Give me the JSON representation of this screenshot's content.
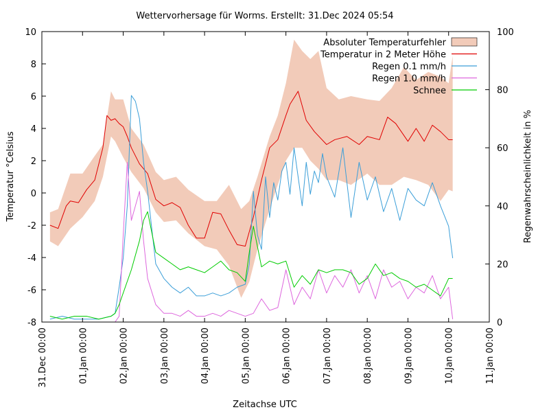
{
  "chart_data": {
    "type": "line",
    "title": "Wettervorhersage für Worms. Erstellt: 31.Dec 2024 05:54",
    "xlabel": "Zeitachse UTC",
    "ylabel": "Temperatur °Celsius",
    "y2label": "Regenwahrscheinlichkeit in %",
    "ylim": [
      -8,
      10
    ],
    "y2lim": [
      0,
      100
    ],
    "xlim": [
      0,
      11
    ],
    "y_ticks": [
      -8,
      -6,
      -4,
      -2,
      0,
      2,
      4,
      6,
      8,
      10
    ],
    "y_tick_labels": [
      "-8",
      "-6",
      "-4",
      "-2",
      "0",
      "2",
      "4",
      "6",
      "8",
      "10"
    ],
    "y2_ticks": [
      0,
      20,
      40,
      60,
      80,
      100
    ],
    "y2_tick_labels": [
      "0",
      "20",
      "40",
      "60",
      "80",
      "100"
    ],
    "x_ticks": [
      0,
      1,
      2,
      3,
      4,
      5,
      6,
      7,
      8,
      9,
      10,
      11
    ],
    "x_tick_labels": [
      "31.Dec 00:00",
      "01.Jan 00:00",
      "02.Jan 00:00",
      "03.Jan 00:00",
      "04.Jan 00:00",
      "05.Jan 00:00",
      "06.Jan 00:00",
      "07.Jan 00:00",
      "08.Jan 00:00",
      "09.Jan 00:00",
      "10.Jan 00:00",
      "11.Jan 00:00"
    ],
    "legend_position": "top-right",
    "series": [
      {
        "name": "Absoluter Temperaturfehler",
        "kind": "band",
        "axis": "y",
        "color": "#f2cbb9",
        "x": [
          0.2,
          0.4,
          0.7,
          1.0,
          1.3,
          1.5,
          1.7,
          1.8,
          2.0,
          2.2,
          2.5,
          2.8,
          3.0,
          3.3,
          3.6,
          4.0,
          4.3,
          4.6,
          4.9,
          5.1,
          5.3,
          5.6,
          5.8,
          6.0,
          6.2,
          6.4,
          6.6,
          6.8,
          7.0,
          7.3,
          7.6,
          8.0,
          8.3,
          8.6,
          8.9,
          9.2,
          9.5,
          9.8,
          10.0,
          10.1
        ],
        "lower": [
          -3.0,
          -3.3,
          -2.2,
          -1.5,
          -0.5,
          1.0,
          3.5,
          3.2,
          2.2,
          1.3,
          0.3,
          -1.2,
          -1.8,
          -1.7,
          -2.5,
          -3.3,
          -3.5,
          -4.5,
          -6.5,
          -5.5,
          -3.5,
          -1.0,
          0.5,
          2.0,
          2.8,
          2.8,
          2.0,
          1.5,
          0.8,
          0.8,
          0.5,
          1.2,
          0.5,
          0.5,
          1.0,
          0.8,
          0.5,
          -0.5,
          0.2,
          0.1
        ],
        "upper": [
          -1.2,
          -1.0,
          1.2,
          1.2,
          2.3,
          3.0,
          6.3,
          5.8,
          5.8,
          4.0,
          3.0,
          1.3,
          0.8,
          1.0,
          0.2,
          -0.5,
          -0.5,
          0.5,
          -1.0,
          -0.5,
          1.0,
          3.5,
          4.8,
          6.8,
          9.5,
          8.8,
          8.3,
          8.8,
          6.5,
          5.8,
          6.0,
          5.8,
          5.7,
          6.5,
          7.8,
          7.0,
          7.5,
          7.2,
          6.8,
          8.5
        ]
      },
      {
        "name": "Temperatur in 2 Meter Höhe",
        "kind": "line",
        "axis": "y",
        "color": "#e00000",
        "x": [
          0.2,
          0.4,
          0.6,
          0.7,
          0.9,
          1.1,
          1.3,
          1.5,
          1.6,
          1.7,
          1.8,
          1.9,
          2.0,
          2.1,
          2.2,
          2.4,
          2.6,
          2.8,
          3.0,
          3.2,
          3.4,
          3.6,
          3.8,
          4.0,
          4.2,
          4.4,
          4.6,
          4.8,
          5.0,
          5.2,
          5.4,
          5.6,
          5.8,
          6.0,
          6.1,
          6.3,
          6.5,
          6.7,
          7.0,
          7.2,
          7.5,
          7.8,
          8.0,
          8.3,
          8.5,
          8.7,
          9.0,
          9.2,
          9.4,
          9.6,
          9.8,
          10.0,
          10.1
        ],
        "y": [
          -2.0,
          -2.2,
          -0.8,
          -0.5,
          -0.6,
          0.2,
          0.8,
          2.8,
          4.8,
          4.5,
          4.6,
          4.3,
          4.1,
          3.5,
          2.8,
          1.8,
          1.2,
          -0.4,
          -0.8,
          -0.6,
          -0.9,
          -2.0,
          -2.8,
          -2.8,
          -1.2,
          -1.3,
          -2.3,
          -3.2,
          -3.3,
          -1.5,
          0.8,
          2.8,
          3.3,
          4.8,
          5.5,
          6.3,
          4.5,
          3.8,
          3.0,
          3.3,
          3.5,
          3.0,
          3.5,
          3.3,
          4.7,
          4.3,
          3.2,
          4.0,
          3.2,
          4.2,
          3.8,
          3.3,
          3.3
        ]
      },
      {
        "name": "Regen 0.1 mm/h",
        "kind": "line",
        "axis": "y2",
        "color": "#3a9ed8",
        "x": [
          0.2,
          0.5,
          0.8,
          1.1,
          1.4,
          1.7,
          1.8,
          1.9,
          2.0,
          2.1,
          2.2,
          2.3,
          2.4,
          2.5,
          2.6,
          2.8,
          3.0,
          3.2,
          3.4,
          3.6,
          3.8,
          4.0,
          4.2,
          4.4,
          4.6,
          4.8,
          5.0,
          5.1,
          5.2,
          5.3,
          5.4,
          5.5,
          5.6,
          5.7,
          5.8,
          5.9,
          6.0,
          6.1,
          6.2,
          6.3,
          6.4,
          6.5,
          6.6,
          6.7,
          6.8,
          6.9,
          7.0,
          7.2,
          7.4,
          7.6,
          7.8,
          8.0,
          8.2,
          8.4,
          8.6,
          8.8,
          9.0,
          9.2,
          9.4,
          9.6,
          9.8,
          10.0,
          10.1
        ],
        "y": [
          1,
          2,
          1,
          1,
          1,
          2,
          3,
          12,
          22,
          40,
          78,
          76,
          70,
          55,
          45,
          20,
          15,
          12,
          10,
          12,
          9,
          9,
          10,
          9,
          10,
          12,
          13,
          20,
          45,
          30,
          25,
          50,
          36,
          48,
          42,
          52,
          55,
          44,
          60,
          50,
          40,
          55,
          44,
          52,
          48,
          58,
          50,
          43,
          60,
          36,
          55,
          42,
          50,
          38,
          46,
          35,
          46,
          42,
          40,
          48,
          40,
          33,
          22
        ]
      },
      {
        "name": "Regen 1.0 mm/h",
        "kind": "line",
        "axis": "y2",
        "color": "#dd66dd",
        "x": [
          0.2,
          0.5,
          0.8,
          1.1,
          1.4,
          1.7,
          1.8,
          1.9,
          2.0,
          2.1,
          2.2,
          2.3,
          2.4,
          2.5,
          2.6,
          2.8,
          3.0,
          3.2,
          3.4,
          3.6,
          3.8,
          4.0,
          4.2,
          4.4,
          4.6,
          4.8,
          5.0,
          5.2,
          5.4,
          5.6,
          5.8,
          6.0,
          6.2,
          6.4,
          6.6,
          6.8,
          7.0,
          7.2,
          7.4,
          7.6,
          7.8,
          8.0,
          8.2,
          8.4,
          8.6,
          8.8,
          9.0,
          9.2,
          9.4,
          9.6,
          9.8,
          10.0,
          10.1
        ],
        "y": [
          0,
          0,
          0,
          0,
          0,
          0,
          0,
          2,
          30,
          55,
          35,
          40,
          45,
          28,
          15,
          6,
          3,
          3,
          2,
          4,
          2,
          2,
          3,
          2,
          4,
          3,
          2,
          3,
          8,
          4,
          5,
          18,
          6,
          12,
          8,
          18,
          10,
          16,
          12,
          18,
          10,
          16,
          8,
          18,
          12,
          14,
          8,
          12,
          10,
          16,
          8,
          12,
          1
        ]
      },
      {
        "name": "Schnee",
        "kind": "line",
        "axis": "y2",
        "color": "#00cc00",
        "x": [
          0.2,
          0.5,
          0.8,
          1.1,
          1.4,
          1.7,
          1.8,
          1.9,
          2.0,
          2.2,
          2.4,
          2.5,
          2.6,
          2.8,
          3.0,
          3.2,
          3.4,
          3.6,
          3.8,
          4.0,
          4.2,
          4.4,
          4.6,
          4.8,
          5.0,
          5.1,
          5.2,
          5.4,
          5.6,
          5.8,
          6.0,
          6.2,
          6.4,
          6.6,
          6.8,
          7.0,
          7.2,
          7.4,
          7.6,
          7.8,
          8.0,
          8.2,
          8.4,
          8.6,
          8.8,
          9.0,
          9.2,
          9.4,
          9.6,
          9.8,
          10.0,
          10.1
        ],
        "y": [
          2,
          1,
          2,
          2,
          1,
          2,
          3,
          6,
          10,
          18,
          28,
          35,
          38,
          24,
          22,
          20,
          18,
          19,
          18,
          17,
          19,
          21,
          18,
          17,
          14,
          24,
          33,
          19,
          21,
          20,
          21,
          12,
          16,
          13,
          18,
          17,
          18,
          18,
          17,
          13,
          15,
          20,
          16,
          17,
          15,
          14,
          12,
          13,
          11,
          9,
          15,
          15
        ]
      }
    ]
  }
}
